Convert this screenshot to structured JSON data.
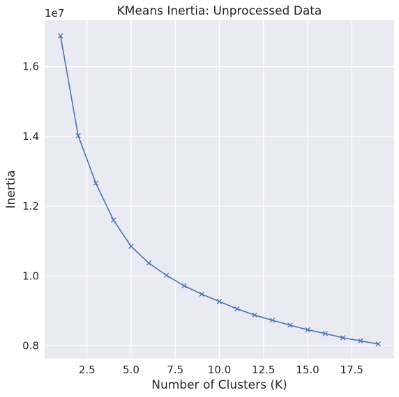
{
  "chart_data": {
    "type": "line",
    "title": "KMeans Inertia: Unprocessed Data",
    "xlabel": "Number of Clusters (K)",
    "ylabel": "Inertia",
    "y_offset_label": "1e7",
    "xlim": [
      0.1,
      19.9
    ],
    "ylim": [
      0.763,
      1.733
    ],
    "x_ticks": [
      2.5,
      5.0,
      7.5,
      10.0,
      12.5,
      15.0,
      17.5
    ],
    "x_tick_labels": [
      "2.5",
      "5.0",
      "7.5",
      "10.0",
      "12.5",
      "15.0",
      "17.5"
    ],
    "y_ticks": [
      0.8,
      1.0,
      1.2,
      1.4,
      1.6
    ],
    "y_tick_labels": [
      "0.8",
      "1.0",
      "1.2",
      "1.4",
      "1.6"
    ],
    "grid": true,
    "legend": "none",
    "background_color": "#eaeaf2",
    "series": [
      {
        "color": "#4c72b0",
        "marker": "x",
        "x": [
          1,
          2,
          3,
          4,
          5,
          6,
          7,
          8,
          9,
          10,
          11,
          12,
          13,
          14,
          15,
          16,
          17,
          18,
          19
        ],
        "y": [
          1.688,
          1.402,
          1.266,
          1.16,
          1.085,
          1.037,
          1.002,
          0.972,
          0.948,
          0.927,
          0.906,
          0.888,
          0.873,
          0.859,
          0.846,
          0.835,
          0.823,
          0.814,
          0.805
        ]
      }
    ]
  }
}
